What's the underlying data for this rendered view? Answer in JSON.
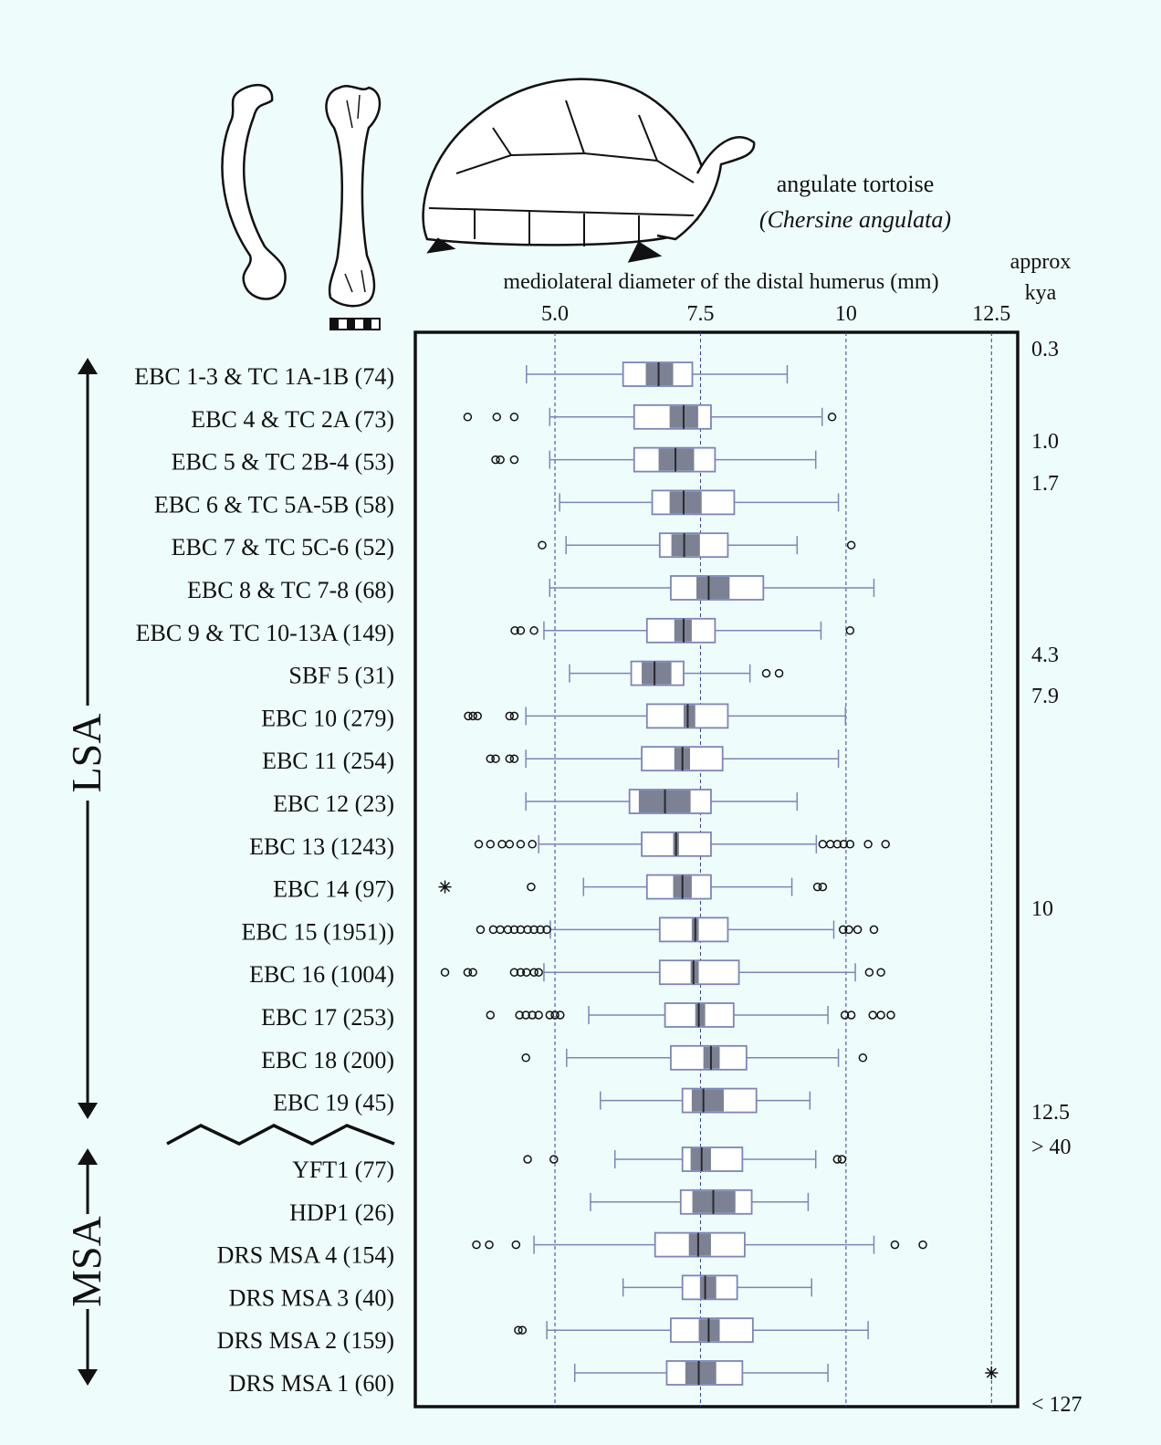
{
  "chart_data": {
    "type": "boxplot",
    "title": "angulate tortoise",
    "subtitle": "(Chersine angulata)",
    "x_label": "mediolateral diameter of the distal humerus (mm)",
    "y2_title_line1": "approx",
    "y2_title_line2": "kya",
    "kya_labels": [
      "0.3",
      "1.0",
      "1.7",
      "4.3",
      "7.9",
      "10",
      "12.5",
      "> 40",
      "< 127"
    ],
    "groups": [
      "LSA",
      "MSA"
    ],
    "xlim": [
      2.6,
      12.95
    ],
    "xticks": [
      {
        "value": 5,
        "label": "5.0"
      },
      7.5,
      10,
      12.5
    ],
    "grid": true,
    "box_color": "#7b86b8",
    "ci_color": "#7c8194",
    "median_color": "#2a2a2a",
    "categories": [
      "EBC 1-3 & TC 1A-1B (74)",
      "EBC 4 & TC 2A (73)",
      "EBC 5 & TC 2B-4  (53)",
      "EBC 6 & TC 5A-5B (58)",
      "EBC 7 & TC 5C-6 (52)",
      "EBC 8  & TC 7-8 (68)",
      "EBC 9 & TC 10-13A (149)",
      "SBF 5 (31)",
      "EBC 10 (279)",
      "EBC 11 (254)",
      "EBC 12 (23)",
      "EBC 13 (1243)",
      "EBC 14 (97)",
      "EBC 15 (1951))",
      "EBC 16 (1004)",
      "EBC 17 (253)",
      "EBC 18 (200)",
      "EBC 19 (45)",
      "YFT1 (77)",
      "HDP1 (26)",
      "DRS MSA 4 (154)",
      "DRS MSA 3 (40)",
      "DRS MSA 2 (159)",
      "DRS MSA 1 (60)"
    ],
    "boxes": [
      {
        "whisker_low": 4.51,
        "q1": 6.17,
        "ci_low": 6.56,
        "median": 6.78,
        "ci_high": 7.03,
        "q3": 7.36,
        "whisker_high": 8.99,
        "outliers": [],
        "extremes": []
      },
      {
        "whisker_low": 4.91,
        "q1": 6.36,
        "ci_low": 6.97,
        "median": 7.21,
        "ci_high": 7.46,
        "q3": 7.68,
        "whisker_high": 9.59,
        "outliers": [
          3.5,
          4.0,
          4.3,
          9.76
        ],
        "extremes": []
      },
      {
        "whisker_low": 4.91,
        "q1": 6.36,
        "ci_low": 6.78,
        "median": 7.07,
        "ci_high": 7.39,
        "q3": 7.75,
        "whisker_high": 9.48,
        "outliers": [
          3.98,
          4.06,
          4.3
        ],
        "extremes": []
      },
      {
        "whisker_low": 5.08,
        "q1": 6.67,
        "ci_low": 6.97,
        "median": 7.21,
        "ci_high": 7.52,
        "q3": 8.08,
        "whisker_high": 9.87,
        "outliers": [],
        "extremes": []
      },
      {
        "whisker_low": 5.19,
        "q1": 6.8,
        "ci_low": 7.0,
        "median": 7.22,
        "ci_high": 7.49,
        "q3": 7.97,
        "whisker_high": 9.16,
        "outliers": [
          4.78,
          10.09
        ],
        "extremes": []
      },
      {
        "whisker_low": 4.91,
        "q1": 6.99,
        "ci_low": 7.43,
        "median": 7.64,
        "ci_high": 8.0,
        "q3": 8.58,
        "whisker_high": 10.48,
        "outliers": [],
        "extremes": []
      },
      {
        "whisker_low": 4.81,
        "q1": 6.58,
        "ci_low": 7.05,
        "median": 7.21,
        "ci_high": 7.35,
        "q3": 7.75,
        "whisker_high": 9.57,
        "outliers": [
          4.31,
          4.41,
          4.64,
          10.07
        ],
        "extremes": []
      },
      {
        "whisker_low": 5.25,
        "q1": 6.31,
        "ci_low": 6.49,
        "median": 6.71,
        "ci_high": 7.0,
        "q3": 7.21,
        "whisker_high": 8.35,
        "outliers": [
          8.63,
          8.85
        ],
        "extremes": []
      },
      {
        "whisker_low": 4.5,
        "q1": 6.58,
        "ci_low": 7.21,
        "median": 7.28,
        "ci_high": 7.41,
        "q3": 7.97,
        "whisker_high": 9.99,
        "outliers": [
          3.51,
          3.59,
          3.67,
          4.22,
          4.3
        ],
        "extremes": []
      },
      {
        "whisker_low": 4.5,
        "q1": 6.49,
        "ci_low": 7.05,
        "median": 7.19,
        "ci_high": 7.32,
        "q3": 7.88,
        "whisker_high": 9.87,
        "outliers": [
          3.89,
          3.98,
          4.22,
          4.3
        ],
        "extremes": []
      },
      {
        "whisker_low": 4.5,
        "q1": 6.28,
        "ci_low": 6.44,
        "median": 6.89,
        "ci_high": 7.33,
        "q3": 7.68,
        "whisker_high": 9.16,
        "outliers": [],
        "extremes": []
      },
      {
        "whisker_low": 4.72,
        "q1": 6.49,
        "ci_low": 7.03,
        "median": 7.08,
        "ci_high": 7.13,
        "q3": 7.68,
        "whisker_high": 9.49,
        "outliers": [
          3.69,
          3.89,
          4.09,
          4.22,
          4.41,
          4.61,
          9.6,
          9.73,
          9.85,
          9.96,
          10.07,
          10.38,
          10.68
        ],
        "extremes": []
      },
      {
        "whisker_low": 5.49,
        "q1": 6.58,
        "ci_low": 7.03,
        "median": 7.19,
        "ci_high": 7.35,
        "q3": 7.68,
        "whisker_high": 9.07,
        "outliers": [
          4.59,
          9.51,
          9.6
        ],
        "extremes": [
          3.11
        ]
      },
      {
        "whisker_low": 4.92,
        "q1": 6.8,
        "ci_low": 7.35,
        "median": 7.41,
        "ci_high": 7.47,
        "q3": 7.97,
        "whisker_high": 9.79,
        "outliers": [
          3.72,
          3.94,
          4.06,
          4.19,
          4.3,
          4.41,
          4.53,
          4.64,
          4.75,
          4.86,
          9.95,
          10.05,
          10.2,
          10.48
        ],
        "extremes": []
      },
      {
        "whisker_low": 4.81,
        "q1": 6.8,
        "ci_low": 7.33,
        "median": 7.38,
        "ci_high": 7.47,
        "q3": 8.16,
        "whisker_high": 10.16,
        "outliers": [
          3.11,
          3.5,
          3.59,
          4.3,
          4.41,
          4.51,
          4.64,
          4.72,
          10.4,
          10.6
        ],
        "extremes": []
      },
      {
        "whisker_low": 5.58,
        "q1": 6.89,
        "ci_low": 7.41,
        "median": 7.47,
        "ci_high": 7.58,
        "q3": 8.07,
        "whisker_high": 9.69,
        "outliers": [
          3.89,
          4.39,
          4.5,
          4.61,
          4.72,
          4.91,
          5.0,
          5.09,
          9.98,
          10.09,
          10.46,
          10.6,
          10.77
        ],
        "extremes": []
      },
      {
        "whisker_low": 5.2,
        "q1": 6.99,
        "ci_low": 7.55,
        "median": 7.68,
        "ci_high": 7.83,
        "q3": 8.29,
        "whisker_high": 9.87,
        "outliers": [
          4.5,
          10.29
        ],
        "extremes": []
      },
      {
        "whisker_low": 5.78,
        "q1": 7.19,
        "ci_low": 7.35,
        "median": 7.55,
        "ci_high": 7.9,
        "q3": 8.46,
        "whisker_high": 9.38,
        "outliers": [],
        "extremes": []
      },
      {
        "whisker_low": 6.03,
        "q1": 7.19,
        "ci_low": 7.33,
        "median": 7.52,
        "ci_high": 7.68,
        "q3": 8.22,
        "whisker_high": 9.48,
        "outliers": [
          4.53,
          4.98,
          9.85,
          9.93
        ],
        "extremes": []
      },
      {
        "whisker_low": 5.61,
        "q1": 7.16,
        "ci_low": 7.36,
        "median": 7.72,
        "ci_high": 8.1,
        "q3": 8.38,
        "whisker_high": 9.35,
        "outliers": [],
        "extremes": []
      },
      {
        "whisker_low": 4.64,
        "q1": 6.72,
        "ci_low": 7.3,
        "median": 7.46,
        "ci_high": 7.68,
        "q3": 8.26,
        "whisker_high": 10.48,
        "outliers": [
          3.65,
          3.87,
          4.33,
          10.84,
          11.32
        ],
        "extremes": []
      },
      {
        "whisker_low": 6.17,
        "q1": 7.19,
        "ci_low": 7.49,
        "median": 7.58,
        "ci_high": 7.77,
        "q3": 8.13,
        "whisker_high": 9.41,
        "outliers": [],
        "extremes": []
      },
      {
        "whisker_low": 4.86,
        "q1": 6.99,
        "ci_low": 7.47,
        "median": 7.64,
        "ci_high": 7.83,
        "q3": 8.4,
        "whisker_high": 10.38,
        "outliers": [
          4.37,
          4.44
        ],
        "extremes": []
      },
      {
        "whisker_low": 5.34,
        "q1": 6.92,
        "ci_low": 7.24,
        "median": 7.47,
        "ci_high": 7.77,
        "q3": 8.22,
        "whisker_high": 9.69,
        "outliers": [],
        "extremes": [
          12.5
        ]
      }
    ]
  }
}
